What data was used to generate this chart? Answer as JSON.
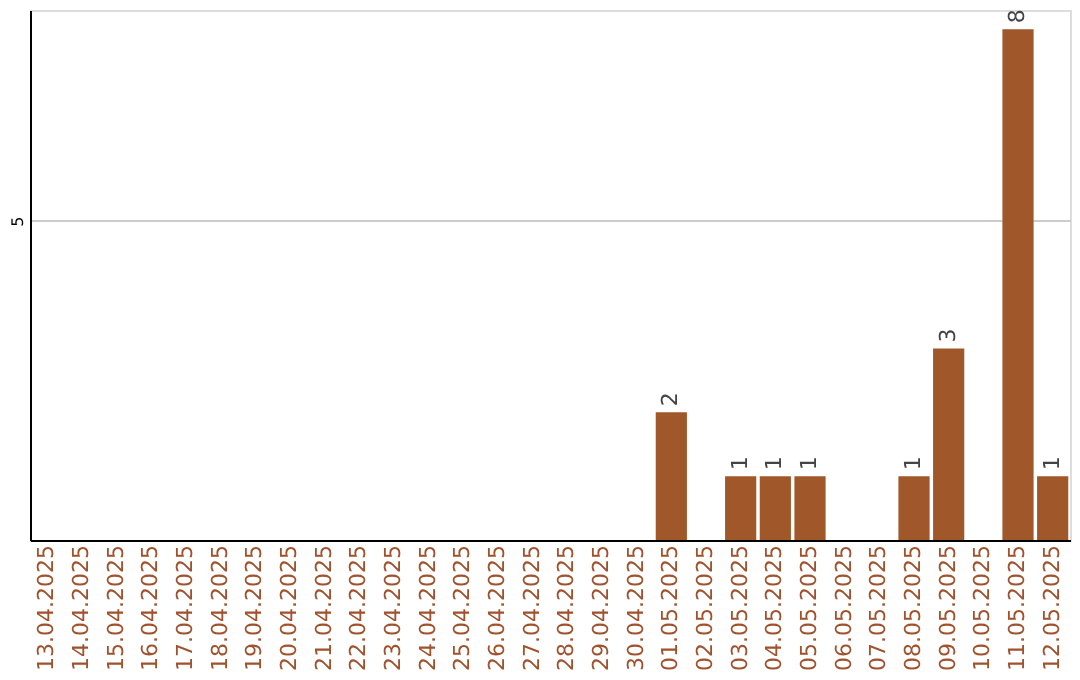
{
  "chart_data": {
    "type": "bar",
    "categories": [
      "13.04.2025",
      "14.04.2025",
      "15.04.2025",
      "16.04.2025",
      "17.04.2025",
      "18.04.2025",
      "19.04.2025",
      "20.04.2025",
      "21.04.2025",
      "22.04.2025",
      "23.04.2025",
      "24.04.2025",
      "25.04.2025",
      "26.04.2025",
      "27.04.2025",
      "28.04.2025",
      "29.04.2025",
      "30.04.2025",
      "01.05.2025",
      "02.05.2025",
      "03.05.2025",
      "04.05.2025",
      "05.05.2025",
      "06.05.2025",
      "07.05.2025",
      "08.05.2025",
      "09.05.2025",
      "10.05.2025",
      "11.05.2025",
      "12.05.2025"
    ],
    "values": [
      null,
      null,
      null,
      null,
      null,
      null,
      null,
      null,
      null,
      null,
      null,
      null,
      null,
      null,
      null,
      null,
      null,
      null,
      2,
      null,
      1,
      1,
      1,
      null,
      null,
      1,
      3,
      null,
      8,
      1
    ],
    "color": "#a0582a",
    "ylim": [
      0,
      8.3
    ],
    "yticks": [
      5
    ],
    "grid": "y",
    "data_labels": true
  }
}
